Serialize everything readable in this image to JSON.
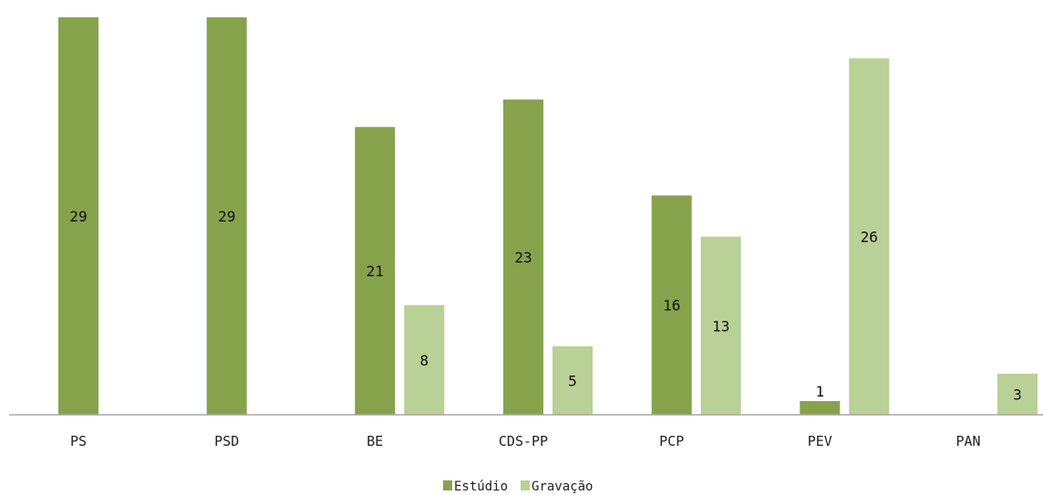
{
  "chart_data": {
    "type": "bar",
    "categories": [
      "PS",
      "PSD",
      "BE",
      "CDS-PP",
      "PCP",
      "PEV",
      "PAN"
    ],
    "series": [
      {
        "name": "Estúdio",
        "values": [
          29,
          29,
          21,
          23,
          16,
          1,
          null
        ],
        "color": "#86a34c"
      },
      {
        "name": "Gravação",
        "values": [
          null,
          null,
          8,
          5,
          13,
          26,
          3
        ],
        "color": "#b9d096"
      }
    ],
    "ylim": [
      0,
      29
    ],
    "grid": false,
    "legend": "bottom",
    "title": "",
    "xlabel": "",
    "ylabel": ""
  }
}
